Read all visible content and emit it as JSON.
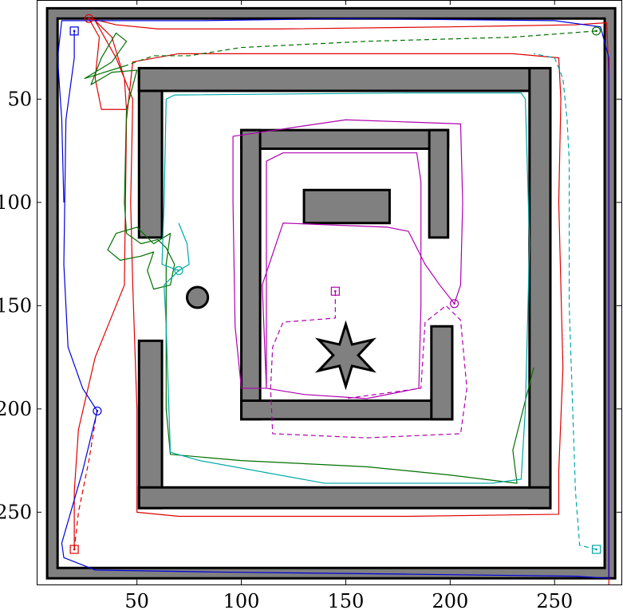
{
  "chart_data": {
    "type": "map_trajectories",
    "title": "",
    "xlabel": "",
    "ylabel": "",
    "xlim": [
      2,
      282
    ],
    "ylim": [
      285,
      2
    ],
    "xticks": [
      {
        "value": 50,
        "label": "50"
      },
      {
        "value": 100,
        "label": "100"
      },
      {
        "value": 150,
        "label": "150"
      },
      {
        "value": 200,
        "label": "200"
      },
      {
        "value": 250,
        "label": "250"
      }
    ],
    "yticks": [
      {
        "value": 50,
        "label": "50"
      },
      {
        "value": 100,
        "label": "100"
      },
      {
        "value": 150,
        "label": "150"
      },
      {
        "value": 200,
        "label": "200"
      },
      {
        "value": 250,
        "label": "250"
      }
    ],
    "colors": {
      "background": "#ffffff",
      "obstacle_fill": "#808080",
      "obstacle_edge": "#000000",
      "red": "#e00000",
      "green": "#007000",
      "blue": "#0000e0",
      "cyan": "#00a8a8",
      "magenta": "#b000b0"
    },
    "obstacles": [
      {
        "name": "outer-border",
        "kind": "rect-frame",
        "outer": [
          7,
          279,
          6,
          282
        ],
        "inner": [
          12,
          274,
          11,
          277
        ]
      },
      {
        "name": "c-wall-left-top",
        "kind": "rect",
        "x": [
          51,
          62
        ],
        "y": [
          35,
          117
        ]
      },
      {
        "name": "c-wall-left-bottom",
        "kind": "rect",
        "x": [
          51,
          62
        ],
        "y": [
          167,
          248
        ]
      },
      {
        "name": "c-wall-top",
        "kind": "rect",
        "x": [
          51,
          248
        ],
        "y": [
          35,
          46
        ]
      },
      {
        "name": "c-wall-right",
        "kind": "rect",
        "x": [
          238,
          248
        ],
        "y": [
          35,
          248
        ]
      },
      {
        "name": "c-wall-bottom",
        "kind": "rect",
        "x": [
          51,
          248
        ],
        "y": [
          238,
          248
        ]
      },
      {
        "name": "inner-u-top",
        "kind": "rect",
        "x": [
          100,
          199
        ],
        "y": [
          65,
          74
        ]
      },
      {
        "name": "inner-u-left",
        "kind": "rect",
        "x": [
          100,
          109
        ],
        "y": [
          65,
          205
        ]
      },
      {
        "name": "inner-u-bottom",
        "kind": "rect",
        "x": [
          100,
          201
        ],
        "y": [
          196,
          205
        ]
      },
      {
        "name": "inner-u-right-top",
        "kind": "rect",
        "x": [
          190,
          199
        ],
        "y": [
          65,
          117
        ]
      },
      {
        "name": "inner-u-right-bottom",
        "kind": "rect",
        "x": [
          191,
          201
        ],
        "y": [
          160,
          205
        ]
      },
      {
        "name": "small-bar",
        "kind": "rect",
        "x": [
          130,
          171
        ],
        "y": [
          94,
          110
        ]
      },
      {
        "name": "small-circle",
        "kind": "circle",
        "cx": 79,
        "cy": 146,
        "r": 5
      },
      {
        "name": "star",
        "kind": "star",
        "cx": 150,
        "cy": 174,
        "r_outer": 15,
        "r_inner": 6,
        "points": 6
      }
    ],
    "series": [
      {
        "color": "red",
        "style": "solid",
        "marker": "circle",
        "marker_at": [
          27,
          11
        ],
        "points": [
          [
            27,
            11
          ],
          [
            32,
            12
          ],
          [
            40,
            14
          ],
          [
            60,
            16
          ],
          [
            120,
            16
          ],
          [
            200,
            15
          ],
          [
            260,
            14
          ],
          [
            275,
            13
          ],
          [
            276,
            40
          ],
          [
            276,
            120
          ],
          [
            276,
            200
          ],
          [
            276,
            285
          ]
        ]
      },
      {
        "color": "red",
        "style": "solid",
        "points": [
          [
            27,
            11
          ],
          [
            32,
            20
          ],
          [
            30,
            40
          ],
          [
            33,
            55
          ],
          [
            45,
            55
          ],
          [
            44,
            40
          ],
          [
            38,
            20
          ],
          [
            30,
            12
          ],
          [
            40,
            30
          ],
          [
            48,
            50
          ],
          [
            47,
            100
          ],
          [
            48,
            140
          ],
          [
            50,
            200
          ],
          [
            50,
            250
          ],
          [
            70,
            252
          ],
          [
            180,
            252
          ],
          [
            252,
            251
          ],
          [
            252,
            230
          ],
          [
            254,
            180
          ],
          [
            252,
            100
          ],
          [
            253,
            50
          ],
          [
            252,
            30
          ],
          [
            230,
            28
          ],
          [
            150,
            28
          ],
          [
            70,
            28
          ],
          [
            48,
            32
          ],
          [
            45,
            60
          ],
          [
            44,
            140
          ],
          [
            40,
            150
          ],
          [
            30,
            175
          ],
          [
            22,
            210
          ],
          [
            20,
            240
          ],
          [
            20,
            268
          ]
        ]
      },
      {
        "color": "red",
        "style": "dashed",
        "marker": "square",
        "marker_at": [
          20,
          268
        ],
        "points": [
          [
            20,
            268
          ],
          [
            22,
            250
          ],
          [
            27,
            225
          ],
          [
            31,
            200
          ]
        ]
      },
      {
        "color": "green",
        "style": "dashed",
        "marker": "circle",
        "marker_at": [
          270,
          17
        ],
        "points": [
          [
            270,
            17
          ],
          [
            230,
            20
          ],
          [
            160,
            22
          ],
          [
            100,
            25
          ],
          [
            75,
            29
          ],
          [
            58,
            29
          ],
          [
            44,
            34
          ]
        ]
      },
      {
        "color": "green",
        "style": "solid",
        "points": [
          [
            44,
            34
          ],
          [
            25,
            40
          ],
          [
            38,
            32
          ],
          [
            45,
            22
          ],
          [
            40,
            18
          ],
          [
            33,
            30
          ],
          [
            28,
            43
          ],
          [
            38,
            37
          ],
          [
            50,
            36
          ],
          [
            45,
            55
          ],
          [
            44,
            100
          ],
          [
            45,
            115
          ],
          [
            52,
            120
          ],
          [
            60,
            118
          ],
          [
            64,
            122
          ],
          [
            68,
            130
          ],
          [
            66,
            140
          ],
          [
            58,
            142
          ],
          [
            55,
            133
          ],
          [
            58,
            124
          ],
          [
            52,
            126
          ],
          [
            42,
            128
          ],
          [
            36,
            123
          ],
          [
            40,
            115
          ],
          [
            50,
            112
          ],
          [
            58,
            120
          ],
          [
            66,
            115
          ],
          [
            64,
            130
          ],
          [
            64,
            200
          ],
          [
            66,
            222
          ],
          [
            100,
            225
          ],
          [
            160,
            228
          ],
          [
            200,
            232
          ],
          [
            232,
            236
          ],
          [
            230,
            220
          ],
          [
            240,
            180
          ]
        ]
      },
      {
        "color": "blue",
        "style": "solid",
        "marker": "square",
        "marker_at": [
          20,
          17
        ],
        "points": [
          [
            20,
            17
          ],
          [
            20,
            30
          ],
          [
            16,
            60
          ],
          [
            15,
            130
          ],
          [
            17,
            170
          ],
          [
            24,
            190
          ],
          [
            31,
            201
          ]
        ]
      },
      {
        "color": "blue",
        "style": "solid",
        "marker": "circle",
        "marker_at": [
          31,
          201
        ],
        "points": [
          [
            31,
            201
          ],
          [
            24,
            230
          ],
          [
            14,
            265
          ],
          [
            15,
            272
          ],
          [
            30,
            278
          ],
          [
            90,
            279
          ],
          [
            180,
            280
          ],
          [
            260,
            281
          ],
          [
            276,
            282
          ],
          [
            276,
            240
          ],
          [
            276,
            160
          ],
          [
            276,
            80
          ],
          [
            276,
            30
          ],
          [
            272,
            15
          ],
          [
            250,
            12
          ],
          [
            150,
            11
          ],
          [
            80,
            12
          ],
          [
            30,
            12
          ],
          [
            14,
            12
          ],
          [
            12,
            30
          ],
          [
            14,
            60
          ],
          [
            15,
            100
          ]
        ]
      },
      {
        "color": "cyan",
        "style": "solid",
        "marker": "circle",
        "marker_at": [
          70,
          133
        ],
        "points": [
          [
            70,
            133
          ],
          [
            62,
            130
          ],
          [
            63,
            100
          ],
          [
            64,
            50
          ],
          [
            68,
            48
          ],
          [
            180,
            47
          ],
          [
            234,
            47
          ],
          [
            236,
            50
          ],
          [
            238,
            120
          ],
          [
            236,
            200
          ],
          [
            234,
            234
          ],
          [
            220,
            236
          ],
          [
            140,
            236
          ],
          [
            80,
            225
          ],
          [
            66,
            221
          ],
          [
            64,
            160
          ],
          [
            63,
            140
          ],
          [
            70,
            133
          ],
          [
            75,
            130
          ],
          [
            74,
            120
          ],
          [
            70,
            110
          ]
        ]
      },
      {
        "color": "cyan",
        "style": "dashed",
        "marker": "square",
        "marker_at": [
          270,
          268
        ],
        "points": [
          [
            270,
            268
          ],
          [
            262,
            266
          ],
          [
            260,
            240
          ],
          [
            257,
            150
          ],
          [
            257,
            80
          ],
          [
            256,
            60
          ],
          [
            254,
            40
          ],
          [
            250,
            30
          ],
          [
            240,
            28
          ]
        ]
      },
      {
        "color": "magenta",
        "style": "solid",
        "marker": "circle",
        "marker_at": [
          202,
          149
        ],
        "points": [
          [
            202,
            149
          ],
          [
            195,
            140
          ],
          [
            188,
            130
          ],
          [
            180,
            114
          ],
          [
            170,
            112
          ],
          [
            120,
            110
          ],
          [
            110,
            140
          ],
          [
            112,
            190
          ],
          [
            130,
            193
          ],
          [
            160,
            195
          ],
          [
            185,
            190
          ],
          [
            186,
            150
          ],
          [
            186,
            90
          ],
          [
            184,
            76
          ],
          [
            120,
            76
          ],
          [
            112,
            80
          ],
          [
            112,
            190
          ],
          [
            100,
            190
          ],
          [
            97,
            160
          ],
          [
            96,
            100
          ],
          [
            96,
            68
          ],
          [
            150,
            60
          ],
          [
            205,
            62
          ],
          [
            206,
            100
          ],
          [
            205,
            140
          ],
          [
            202,
            149
          ]
        ]
      },
      {
        "color": "magenta",
        "style": "dashed",
        "marker": "square",
        "marker_at": [
          145,
          143
        ],
        "points": [
          [
            145,
            143
          ],
          [
            145,
            156
          ],
          [
            120,
            158
          ],
          [
            115,
            170
          ],
          [
            114,
            190
          ],
          [
            115,
            212
          ],
          [
            160,
            214
          ],
          [
            205,
            212
          ],
          [
            208,
            190
          ],
          [
            205,
            157
          ],
          [
            198,
            150
          ],
          [
            188,
            158
          ],
          [
            186,
            190
          ],
          [
            150,
            195
          ]
        ]
      }
    ]
  }
}
